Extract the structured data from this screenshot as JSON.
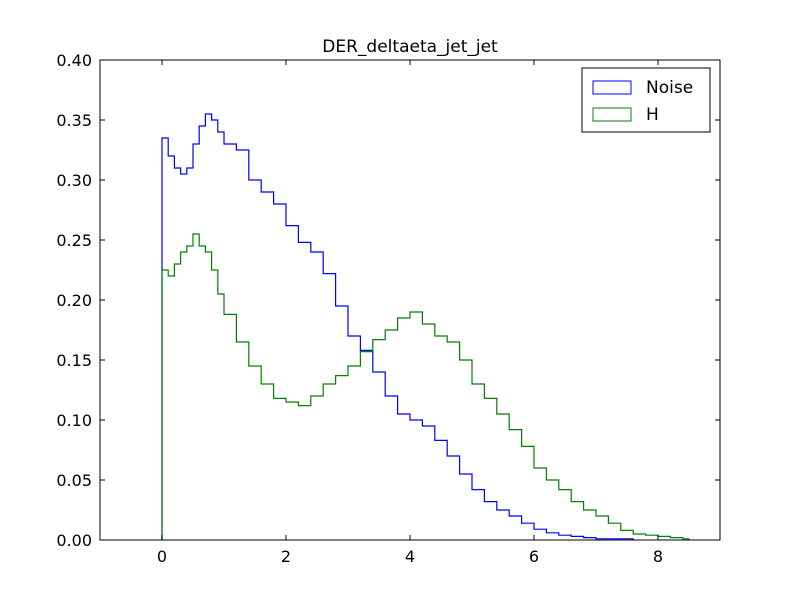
{
  "chart_data": {
    "type": "histogram",
    "title": "DER_deltaeta_jet_jet",
    "xlabel": "",
    "ylabel": "",
    "xlim": [
      -1,
      9
    ],
    "ylim": [
      0.0,
      0.4
    ],
    "xticks": [
      0,
      2,
      4,
      6,
      8
    ],
    "yticks": [
      0.0,
      0.05,
      0.1,
      0.15,
      0.2,
      0.25,
      0.3,
      0.35,
      0.4
    ],
    "xtick_labels": [
      "0",
      "2",
      "4",
      "6",
      "8"
    ],
    "ytick_labels": [
      "0.00",
      "0.05",
      "0.10",
      "0.15",
      "0.20",
      "0.25",
      "0.30",
      "0.35",
      "0.40"
    ],
    "legend": {
      "position": "top-right",
      "entries": [
        "Noise",
        "H"
      ]
    },
    "grid": false,
    "series": [
      {
        "name": "Noise",
        "color": "#0000ff",
        "points": [
          [
            0.0,
            0.335
          ],
          [
            0.1,
            0.32
          ],
          [
            0.2,
            0.31
          ],
          [
            0.3,
            0.305
          ],
          [
            0.4,
            0.31
          ],
          [
            0.5,
            0.33
          ],
          [
            0.6,
            0.345
          ],
          [
            0.7,
            0.355
          ],
          [
            0.8,
            0.35
          ],
          [
            0.9,
            0.34
          ],
          [
            1.0,
            0.33
          ],
          [
            1.2,
            0.325
          ],
          [
            1.4,
            0.3
          ],
          [
            1.6,
            0.29
          ],
          [
            1.8,
            0.28
          ],
          [
            2.0,
            0.262
          ],
          [
            2.2,
            0.248
          ],
          [
            2.4,
            0.24
          ],
          [
            2.6,
            0.222
          ],
          [
            2.8,
            0.195
          ],
          [
            3.0,
            0.17
          ],
          [
            3.2,
            0.158
          ],
          [
            3.4,
            0.14
          ],
          [
            3.6,
            0.12
          ],
          [
            3.8,
            0.105
          ],
          [
            4.0,
            0.1
          ],
          [
            4.2,
            0.095
          ],
          [
            4.4,
            0.083
          ],
          [
            4.6,
            0.07
          ],
          [
            4.8,
            0.055
          ],
          [
            5.0,
            0.042
          ],
          [
            5.2,
            0.032
          ],
          [
            5.4,
            0.025
          ],
          [
            5.6,
            0.02
          ],
          [
            5.8,
            0.014
          ],
          [
            6.0,
            0.009
          ],
          [
            6.2,
            0.006
          ],
          [
            6.4,
            0.004
          ],
          [
            6.6,
            0.003
          ],
          [
            6.8,
            0.002
          ],
          [
            7.0,
            0.001
          ],
          [
            7.2,
            0.001
          ],
          [
            7.6,
            0.0
          ]
        ]
      },
      {
        "name": "H",
        "color": "#008000",
        "points": [
          [
            0.0,
            0.225
          ],
          [
            0.1,
            0.22
          ],
          [
            0.2,
            0.23
          ],
          [
            0.3,
            0.24
          ],
          [
            0.4,
            0.245
          ],
          [
            0.5,
            0.255
          ],
          [
            0.6,
            0.245
          ],
          [
            0.7,
            0.24
          ],
          [
            0.8,
            0.225
          ],
          [
            0.9,
            0.205
          ],
          [
            1.0,
            0.188
          ],
          [
            1.2,
            0.165
          ],
          [
            1.4,
            0.145
          ],
          [
            1.6,
            0.13
          ],
          [
            1.8,
            0.118
          ],
          [
            2.0,
            0.115
          ],
          [
            2.2,
            0.112
          ],
          [
            2.4,
            0.12
          ],
          [
            2.6,
            0.13
          ],
          [
            2.8,
            0.137
          ],
          [
            3.0,
            0.145
          ],
          [
            3.2,
            0.157
          ],
          [
            3.4,
            0.167
          ],
          [
            3.6,
            0.175
          ],
          [
            3.8,
            0.185
          ],
          [
            4.0,
            0.19
          ],
          [
            4.2,
            0.18
          ],
          [
            4.4,
            0.17
          ],
          [
            4.6,
            0.165
          ],
          [
            4.8,
            0.15
          ],
          [
            5.0,
            0.13
          ],
          [
            5.2,
            0.118
          ],
          [
            5.4,
            0.105
          ],
          [
            5.6,
            0.092
          ],
          [
            5.8,
            0.078
          ],
          [
            6.0,
            0.06
          ],
          [
            6.2,
            0.05
          ],
          [
            6.4,
            0.042
          ],
          [
            6.6,
            0.032
          ],
          [
            6.8,
            0.025
          ],
          [
            7.0,
            0.02
          ],
          [
            7.2,
            0.014
          ],
          [
            7.4,
            0.008
          ],
          [
            7.6,
            0.005
          ],
          [
            7.8,
            0.004
          ],
          [
            8.0,
            0.003
          ],
          [
            8.2,
            0.002
          ],
          [
            8.4,
            0.001
          ],
          [
            8.5,
            0.0
          ]
        ]
      }
    ]
  }
}
